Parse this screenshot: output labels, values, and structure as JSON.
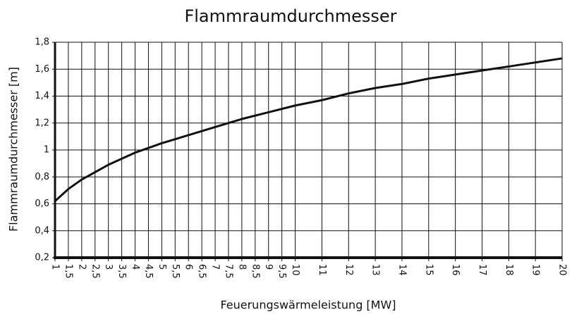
{
  "chart_data": {
    "type": "line",
    "title": "Flammraumdurchmesser",
    "xlabel": "Feuerungswärmeleistung [MW]",
    "ylabel": "Flammraumdurchmesser [m]",
    "x": [
      1,
      1.5,
      2,
      3,
      4,
      5,
      6,
      7,
      8,
      9,
      10,
      11,
      12,
      13,
      14,
      15,
      16,
      17,
      18,
      19,
      20
    ],
    "values": [
      0.62,
      0.71,
      0.78,
      0.89,
      0.98,
      1.05,
      1.11,
      1.17,
      1.23,
      1.28,
      1.33,
      1.37,
      1.42,
      1.46,
      1.49,
      1.53,
      1.56,
      1.59,
      1.62,
      1.65,
      1.68
    ],
    "color": "#111111",
    "xlim": [
      1,
      20
    ],
    "xticks": [
      1,
      {
        "value": 1.5,
        "label": "1,5"
      },
      2,
      {
        "value": 2.5,
        "label": "2,5"
      },
      3,
      {
        "value": 3.5,
        "label": "3,5"
      },
      4,
      {
        "value": 4.5,
        "label": "4,5"
      },
      5,
      {
        "value": 5.5,
        "label": "5,5"
      },
      6,
      {
        "value": 6.5,
        "label": "6,5"
      },
      7,
      {
        "value": 7.5,
        "label": "7,5"
      },
      8,
      {
        "value": 8.5,
        "label": "8,5"
      },
      9,
      {
        "value": 9.5,
        "label": "9,5"
      },
      10,
      11,
      12,
      13,
      14,
      15,
      16,
      17,
      18,
      19,
      20
    ],
    "ylim": [
      0.2,
      1.8
    ],
    "yticks": [
      {
        "value": 0.2,
        "label": "0,2"
      },
      {
        "value": 0.4,
        "label": "0,4"
      },
      {
        "value": 0.6,
        "label": "0,6"
      },
      {
        "value": 0.8,
        "label": "0,8"
      },
      1,
      {
        "value": 1.2,
        "label": "1,2"
      },
      {
        "value": 1.4,
        "label": "1,4"
      },
      {
        "value": 1.6,
        "label": "1,6"
      },
      {
        "value": 1.8,
        "label": "1,8"
      }
    ],
    "grid": true
  }
}
